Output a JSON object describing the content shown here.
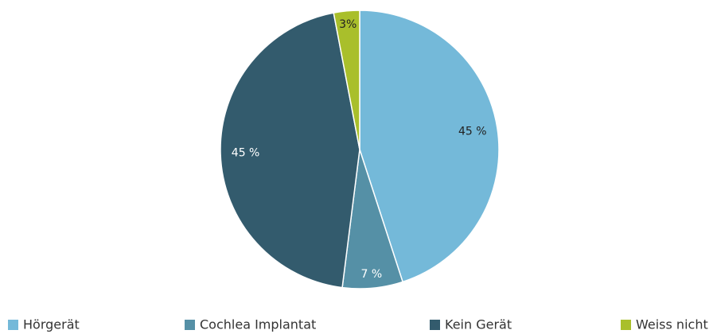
{
  "chart_data": {
    "type": "pie",
    "categories": [
      "Hörgerät",
      "Cochlea Implantat",
      "Kein Gerät",
      "Weiss nicht"
    ],
    "values": [
      45,
      7,
      45,
      3
    ],
    "value_labels": [
      "45 %",
      "7 %",
      "45 %",
      "3%"
    ],
    "colors": [
      "#74b9d9",
      "#5590a6",
      "#335b6d",
      "#a9bf2b"
    ],
    "legend": "bottom"
  }
}
